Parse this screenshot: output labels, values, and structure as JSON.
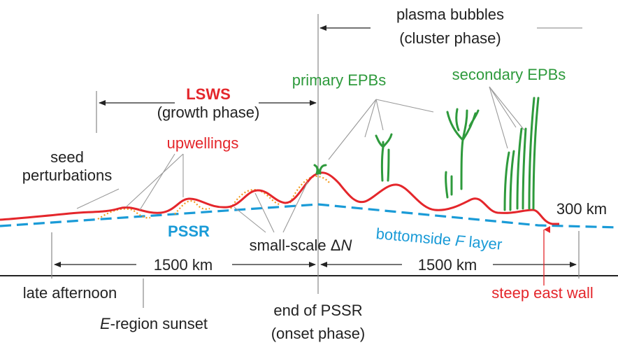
{
  "colors": {
    "red": "#e4262b",
    "green": "#2e9a3c",
    "blue": "#1a9bd7",
    "orange": "#f39a1c",
    "black": "#222222",
    "gray": "#999999"
  },
  "labels": {
    "plasma_bubbles": "plasma bubbles",
    "cluster_phase": "(cluster phase)",
    "primary_epbs": "primary EPBs",
    "secondary_epbs": "secondary EPBs",
    "lsws": "LSWS",
    "growth_phase": "(growth phase)",
    "upwellings": "upwellings",
    "seed": "seed",
    "perturbations": "perturbations",
    "altitude": "300 km",
    "pssr": "PSSR",
    "bottomside_prefix": "bottomside ",
    "bottomside_f": "F",
    "bottomside_suffix": " layer",
    "small_scale_prefix": "small-scale Δ",
    "small_scale_n": "N",
    "distance_left": "1500 km",
    "distance_right": "1500 km",
    "late_afternoon": "late afternoon",
    "e_region_e": "E",
    "e_region_rest": "-region sunset",
    "end_of_pssr": "end of PSSR",
    "onset_phase": "(onset phase)",
    "steep_east_wall": "steep east wall"
  }
}
